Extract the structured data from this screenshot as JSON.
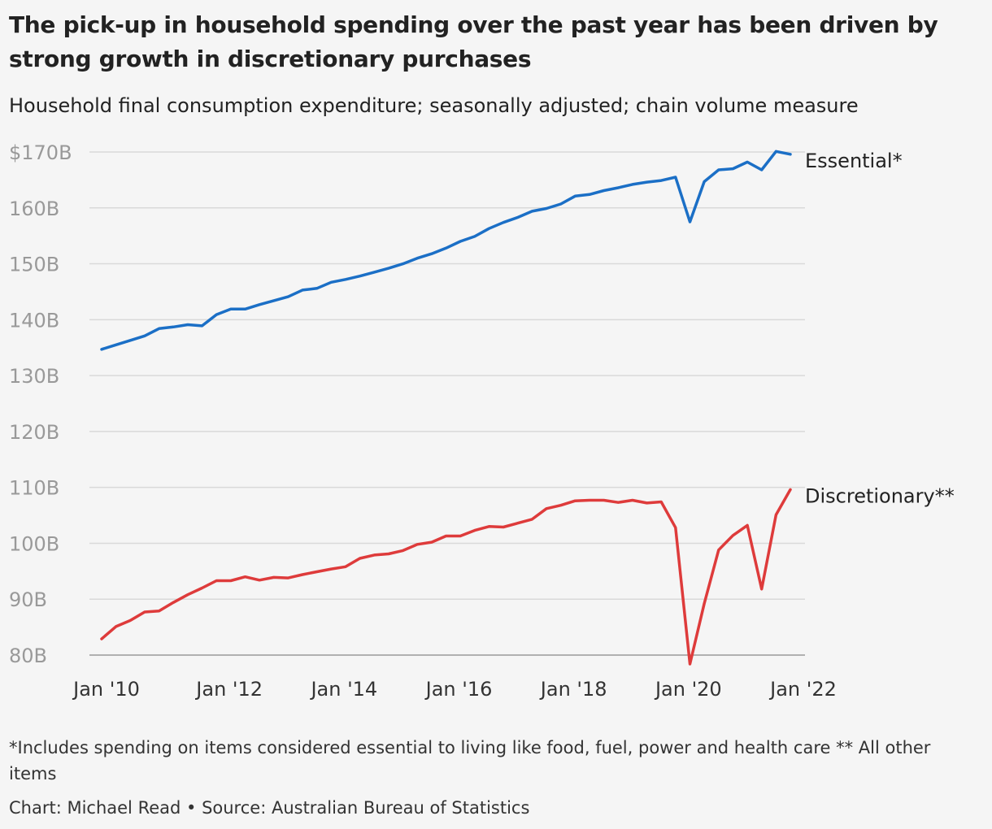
{
  "title": "The pick-up in household spending over the past year has been driven by strong growth in discretionary purchases",
  "subtitle": "Household final consumption expenditure; seasonally adjusted; chain volume measure",
  "footnote": "*Includes spending on items considered essential to living like food, fuel, power and health care ** All other items",
  "source": "Chart: Michael Read • Source: Australian Bureau of Statistics",
  "colors": {
    "essential": "#1b6fc6",
    "discretionary": "#de3b3b",
    "grid": "#d9d9d9",
    "axis": "#999999"
  },
  "chart_data": {
    "type": "line",
    "ylim": [
      80,
      170
    ],
    "y_ticks": [
      80,
      90,
      100,
      110,
      120,
      130,
      140,
      150,
      160,
      170
    ],
    "y_tick_labels": [
      "80B",
      "90B",
      "100B",
      "110B",
      "120B",
      "130B",
      "140B",
      "150B",
      "160B",
      "$170B"
    ],
    "x_tick_labels": [
      "Jan '10",
      "Jan '12",
      "Jan '14",
      "Jan '16",
      "Jan '18",
      "Jan '20",
      "Jan '22"
    ],
    "grid": true,
    "x": [
      "2010-Q1",
      "2010-Q2",
      "2010-Q3",
      "2010-Q4",
      "2011-Q1",
      "2011-Q2",
      "2011-Q3",
      "2011-Q4",
      "2012-Q1",
      "2012-Q2",
      "2012-Q3",
      "2012-Q4",
      "2013-Q1",
      "2013-Q2",
      "2013-Q3",
      "2013-Q4",
      "2014-Q1",
      "2014-Q2",
      "2014-Q3",
      "2014-Q4",
      "2015-Q1",
      "2015-Q2",
      "2015-Q3",
      "2015-Q4",
      "2016-Q1",
      "2016-Q2",
      "2016-Q3",
      "2016-Q4",
      "2017-Q1",
      "2017-Q2",
      "2017-Q3",
      "2017-Q4",
      "2018-Q1",
      "2018-Q2",
      "2018-Q3",
      "2018-Q4",
      "2019-Q1",
      "2019-Q2",
      "2019-Q3",
      "2019-Q4",
      "2020-Q1",
      "2020-Q2",
      "2020-Q3",
      "2020-Q4",
      "2021-Q1",
      "2021-Q2",
      "2021-Q3",
      "2021-Q4",
      "2022-Q1"
    ],
    "series": [
      {
        "name": "Essential*",
        "color": "#1b6fc6",
        "values": [
          134.7,
          135.5,
          136.3,
          137.1,
          138.4,
          138.7,
          139.1,
          138.9,
          140.9,
          141.9,
          141.9,
          142.7,
          143.4,
          144.1,
          145.3,
          145.6,
          146.7,
          147.2,
          147.8,
          148.5,
          149.2,
          150.0,
          151.0,
          151.8,
          152.8,
          154.0,
          154.9,
          156.3,
          157.4,
          158.3,
          159.4,
          159.9,
          160.7,
          162.1,
          162.4,
          163.1,
          163.6,
          164.2,
          164.6,
          164.9,
          165.5,
          157.5,
          164.7,
          166.8,
          167.0,
          168.2,
          166.8,
          170.1,
          169.6
        ]
      },
      {
        "name": "Discretionary**",
        "color": "#de3b3b",
        "values": [
          82.9,
          85.1,
          86.2,
          87.7,
          87.9,
          89.4,
          90.8,
          92.0,
          93.3,
          93.3,
          94.0,
          93.4,
          93.9,
          93.8,
          94.4,
          94.9,
          95.4,
          95.8,
          97.3,
          97.9,
          98.1,
          98.7,
          99.8,
          100.2,
          101.3,
          101.3,
          102.3,
          103.0,
          102.9,
          103.6,
          104.3,
          106.2,
          106.8,
          107.6,
          107.7,
          107.7,
          107.3,
          107.7,
          107.2,
          107.4,
          102.8,
          78.4,
          89.2,
          98.8,
          101.4,
          103.2,
          91.8,
          105.1,
          109.6
        ]
      }
    ]
  }
}
